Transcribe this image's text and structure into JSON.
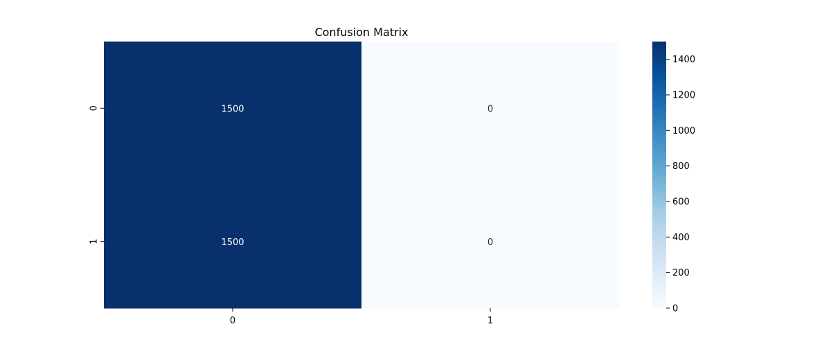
{
  "chart_data": {
    "type": "heatmap",
    "title": "Confusion Matrix",
    "xlabel": "",
    "ylabel": "",
    "x_tick_labels": [
      "0",
      "1"
    ],
    "y_tick_labels": [
      "0",
      "1"
    ],
    "matrix": [
      [
        1500,
        0
      ],
      [
        1500,
        0
      ]
    ],
    "cell_labels": [
      [
        "1500",
        "0"
      ],
      [
        "1500",
        "0"
      ]
    ],
    "colormap": "Blues",
    "color_range": [
      0,
      1500
    ],
    "colorbar": {
      "ticks": [
        0,
        200,
        400,
        600,
        800,
        1000,
        1200,
        1400
      ],
      "tick_labels": [
        "0",
        "200",
        "400",
        "600",
        "800",
        "1000",
        "1200",
        "1400"
      ]
    },
    "colors": {
      "low": "#f7fbff",
      "high": "#08306b",
      "dark_cell_text": "#ffffff",
      "light_cell_text": "#262626"
    }
  }
}
